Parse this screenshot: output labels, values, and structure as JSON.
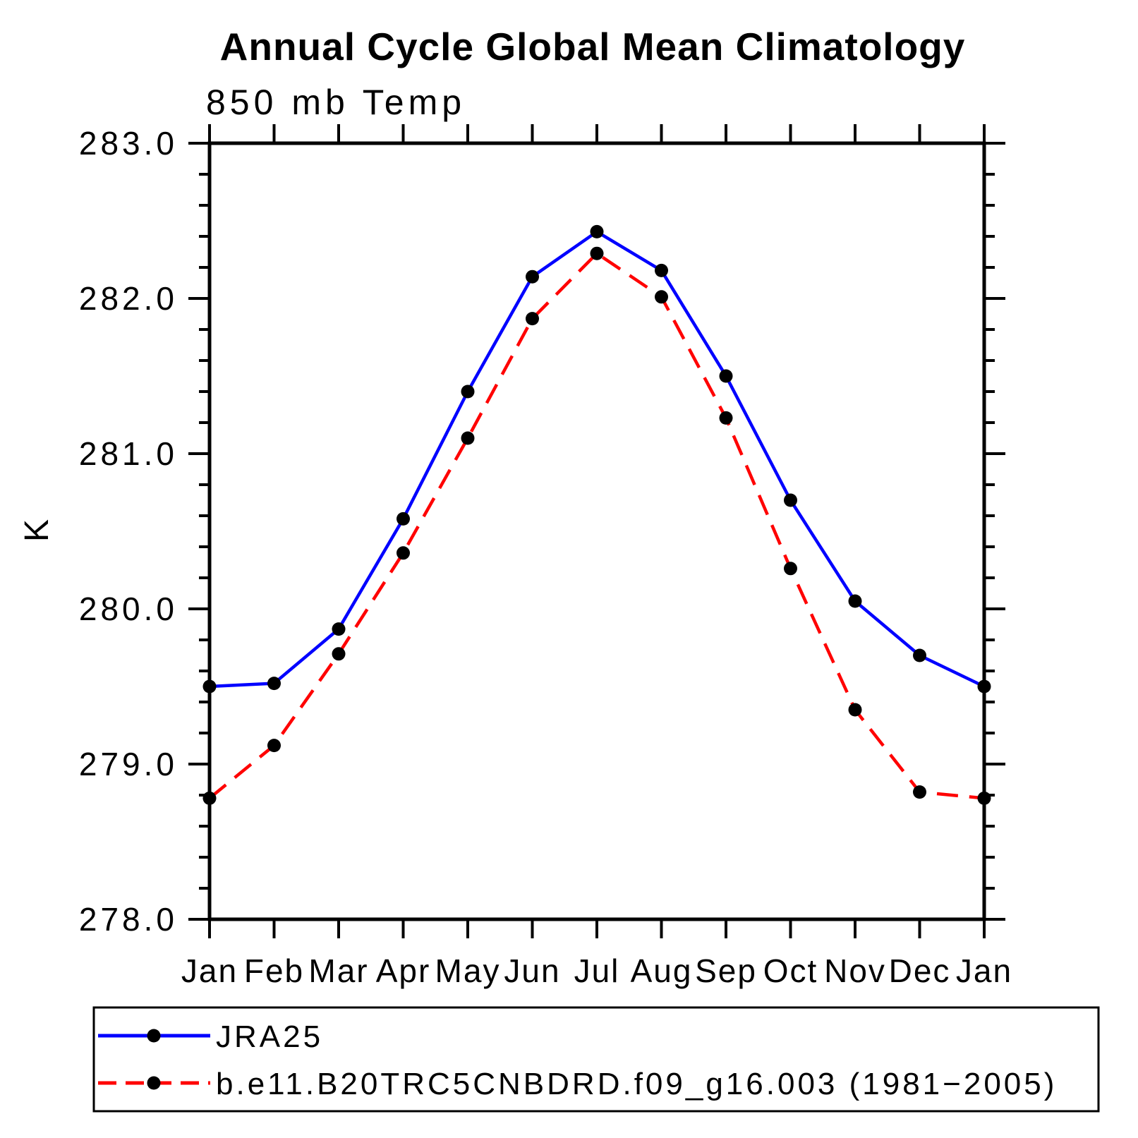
{
  "chart_data": {
    "type": "line",
    "title": "Annual Cycle Global Mean Climatology",
    "subtitle": "850 mb Temp",
    "ylabel": "K",
    "categories": [
      "Jan",
      "Feb",
      "Mar",
      "Apr",
      "May",
      "Jun",
      "Jul",
      "Aug",
      "Sep",
      "Oct",
      "Nov",
      "Dec",
      "Jan"
    ],
    "ylim": [
      278.0,
      283.0
    ],
    "ytick_interval": 1.0,
    "ytick_minor_interval": 0.2,
    "ytick_labels": [
      "278.0",
      "279.0",
      "280.0",
      "281.0",
      "282.0",
      "283.0"
    ],
    "grid": false,
    "legend_position": "bottom-left-box",
    "axis_color": "#000000",
    "marker_color": "#000000",
    "series": [
      {
        "name": "JRA25",
        "color": "#0000ff",
        "line_style": "solid",
        "marker": "circle",
        "values": [
          279.5,
          279.52,
          279.87,
          280.58,
          281.4,
          282.14,
          282.43,
          282.18,
          281.5,
          280.7,
          280.05,
          279.7,
          279.5
        ]
      },
      {
        "name": "b.e11.B20TRC5CNBDRD.f09_g16.003 (1981−2005)",
        "color": "#ff0000",
        "line_style": "dashed",
        "marker": "circle",
        "values": [
          278.78,
          279.12,
          279.71,
          280.36,
          281.1,
          281.87,
          282.29,
          282.01,
          281.23,
          280.26,
          279.35,
          278.82,
          278.78
        ]
      }
    ]
  }
}
